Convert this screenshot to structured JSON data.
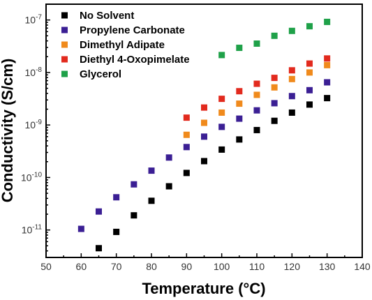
{
  "chart_data": {
    "type": "scatter",
    "xlabel": "Temperature (°C)",
    "ylabel": "Conductivity (S/cm)",
    "xlim": [
      50,
      140
    ],
    "ylim": [
      3e-12,
      2e-07
    ],
    "yscale": "log",
    "grid": false,
    "legend_position": "top-left",
    "x_ticks": [
      50,
      60,
      70,
      80,
      90,
      100,
      110,
      120,
      130,
      140
    ],
    "x_tick_labels": [
      "50",
      "60",
      "70",
      "80",
      "90",
      "100",
      "110",
      "120",
      "130",
      "140"
    ],
    "y_ticks": [
      1e-11,
      1e-10,
      1e-09,
      1e-08,
      1e-07
    ],
    "y_tick_labels": [
      {
        "base": "10",
        "exp": "-11"
      },
      {
        "base": "10",
        "exp": "-10"
      },
      {
        "base": "10",
        "exp": "-9"
      },
      {
        "base": "10",
        "exp": "-8"
      },
      {
        "base": "10",
        "exp": "-7"
      }
    ],
    "series": [
      {
        "name": "No Solvent",
        "color": "#000000",
        "x": [
          65,
          70,
          75,
          80,
          85,
          90,
          95,
          100,
          105,
          110,
          115,
          120,
          125,
          130
        ],
        "y": [
          4.5e-12,
          9.2e-12,
          1.9e-11,
          3.6e-11,
          6.8e-11,
          1.22e-10,
          2.05e-10,
          3.4e-10,
          5.3e-10,
          8e-10,
          1.2e-09,
          1.72e-09,
          2.45e-09,
          3.25e-09
        ]
      },
      {
        "name": "Propylene Carbonate",
        "color": "#3b1f94",
        "x": [
          60,
          65,
          70,
          75,
          80,
          85,
          90,
          95,
          100,
          105,
          110,
          115,
          120,
          125,
          130
        ],
        "y": [
          1.05e-11,
          2.25e-11,
          4.2e-11,
          7.4e-11,
          1.35e-10,
          2.4e-10,
          3.8e-10,
          6e-10,
          9.2e-10,
          1.32e-09,
          1.9e-09,
          2.6e-09,
          3.55e-09,
          4.6e-09,
          6.5e-09
        ]
      },
      {
        "name": "Dimethyl Adipate",
        "color": "#f08a1c",
        "x": [
          90,
          95,
          100,
          105,
          110,
          115,
          120,
          125,
          130
        ],
        "y": [
          6.5e-10,
          1.1e-09,
          1.72e-09,
          2.55e-09,
          3.75e-09,
          5.2e-09,
          7.5e-09,
          1e-08,
          1.38e-08
        ]
      },
      {
        "name": "Diethyl 4-Oxopimelate",
        "color": "#e22a1e",
        "x": [
          90,
          95,
          100,
          105,
          110,
          115,
          120,
          125,
          130
        ],
        "y": [
          1.38e-09,
          2.15e-09,
          3.15e-09,
          4.4e-09,
          6.1e-09,
          7.9e-09,
          1.1e-08,
          1.48e-08,
          1.85e-08
        ]
      },
      {
        "name": "Glycerol",
        "color": "#1fa149",
        "x": [
          100,
          105,
          110,
          115,
          120,
          125,
          130
        ],
        "y": [
          2.15e-08,
          2.95e-08,
          3.55e-08,
          5e-08,
          6.2e-08,
          7.6e-08,
          9.2e-08
        ]
      }
    ]
  }
}
